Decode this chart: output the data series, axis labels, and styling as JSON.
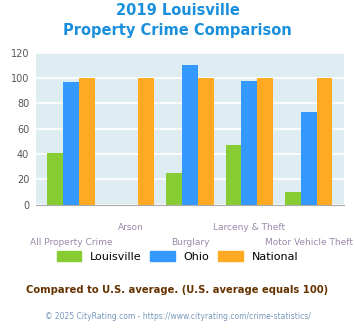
{
  "title_line1": "2019 Louisville",
  "title_line2": "Property Crime Comparison",
  "categories": [
    "All Property Crime",
    "Arson",
    "Burglary",
    "Larceny & Theft",
    "Motor Vehicle Theft"
  ],
  "series": {
    "Louisville": [
      41,
      0,
      25,
      47,
      10
    ],
    "Ohio": [
      97,
      0,
      110,
      98,
      73
    ],
    "National": [
      100,
      100,
      100,
      100,
      100
    ]
  },
  "colors": {
    "Louisville": "#88cc33",
    "Ohio": "#3399ff",
    "National": "#ffaa22"
  },
  "ylim": [
    0,
    120
  ],
  "yticks": [
    0,
    20,
    40,
    60,
    80,
    100,
    120
  ],
  "bg_color": "#deedf2",
  "grid_color": "#ffffff",
  "xlabel_color": "#9988aa",
  "title_color": "#1a8fdd",
  "footnote1": "Compared to U.S. average. (U.S. average equals 100)",
  "footnote2": "© 2025 CityRating.com - https://www.cityrating.com/crime-statistics/",
  "footnote1_color": "#663300",
  "footnote2_color": "#7799bb",
  "row1_indices": [
    0,
    2,
    4
  ],
  "row2_indices": [
    1,
    3
  ]
}
